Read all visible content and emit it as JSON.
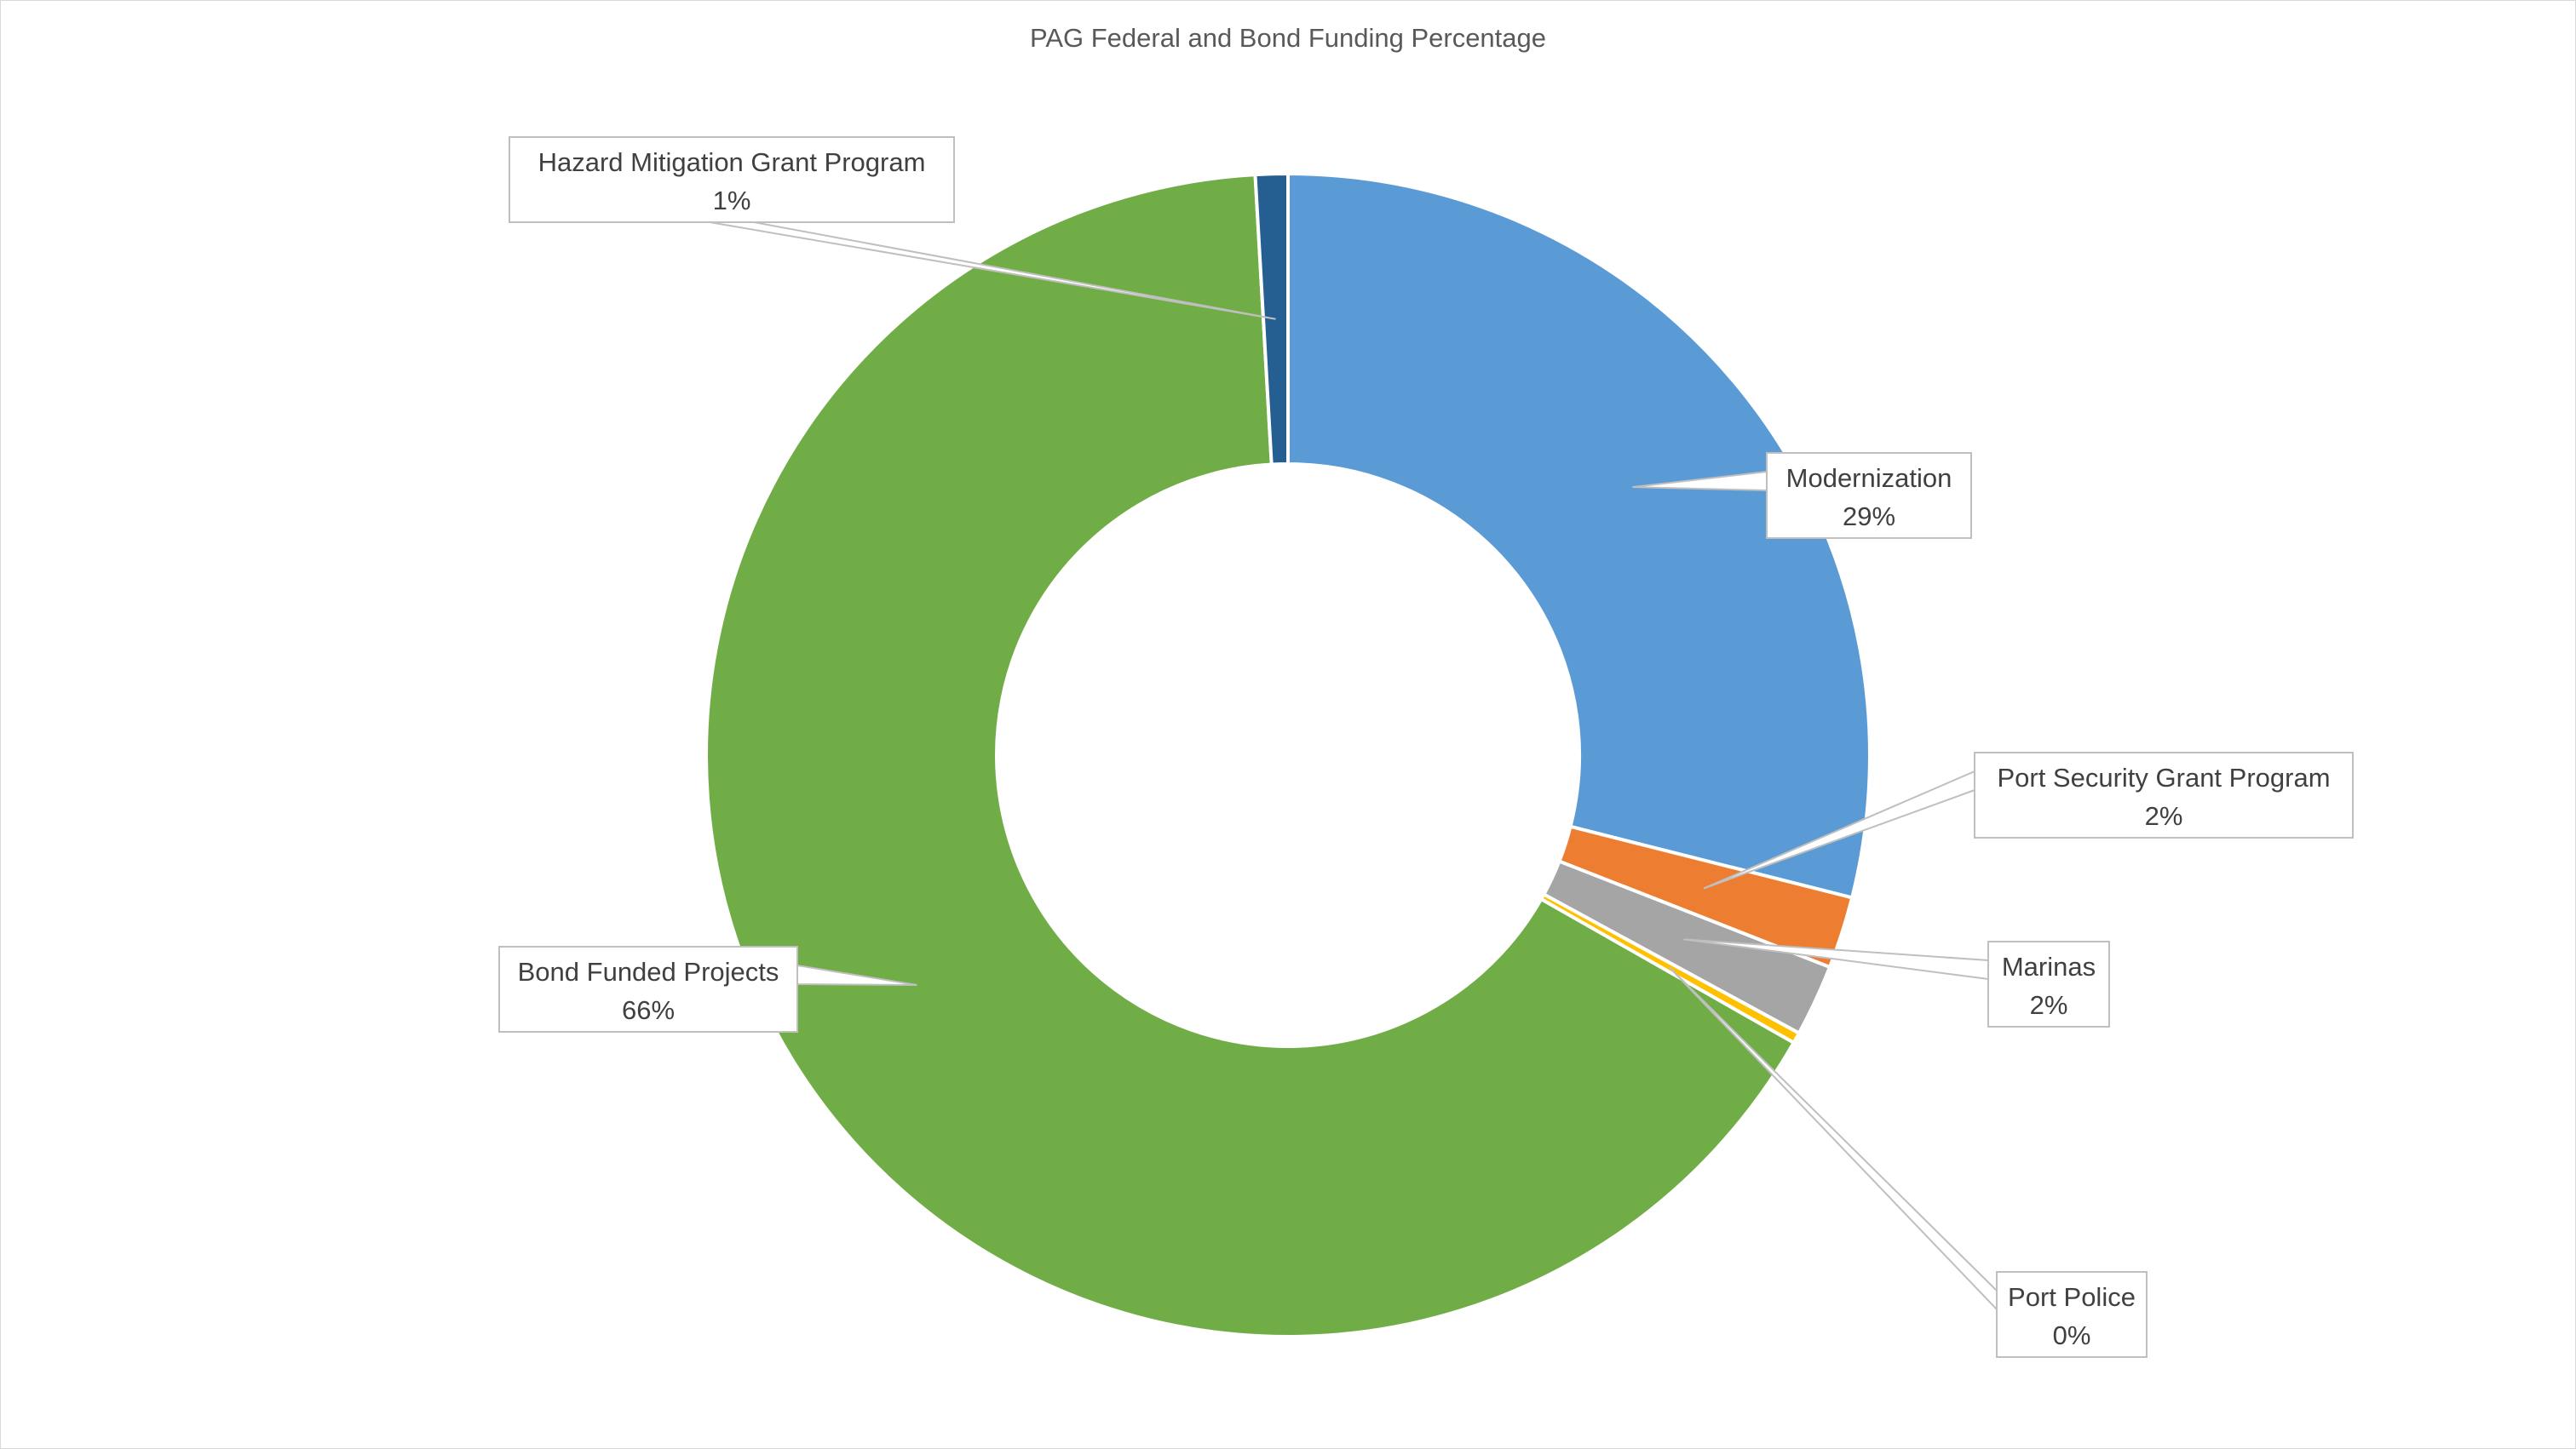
{
  "chart_data": {
    "type": "pie",
    "variant": "doughnut",
    "title": "PAG Federal and Bond Funding Percentage",
    "legend": "none",
    "data_labels": "callouts with category name and percentage",
    "slices": [
      {
        "name": "Modernization",
        "value": 29,
        "label": "29%",
        "color": "#5B9BD5"
      },
      {
        "name": "Port Security Grant Program",
        "value": 2,
        "label": "2%",
        "color": "#ED7D31"
      },
      {
        "name": "Marinas",
        "value": 2,
        "label": "2%",
        "color": "#A5A5A5"
      },
      {
        "name": "Port Police",
        "value": 0.3,
        "label": "0%",
        "color": "#FFC000"
      },
      {
        "name": "Bond Funded Projects",
        "value": 66,
        "label": "66%",
        "color": "#70AD47"
      },
      {
        "name": "Hazard Mitigation Grant Program",
        "value": 0.9,
        "label": "1%",
        "color": "#255E91"
      }
    ]
  }
}
